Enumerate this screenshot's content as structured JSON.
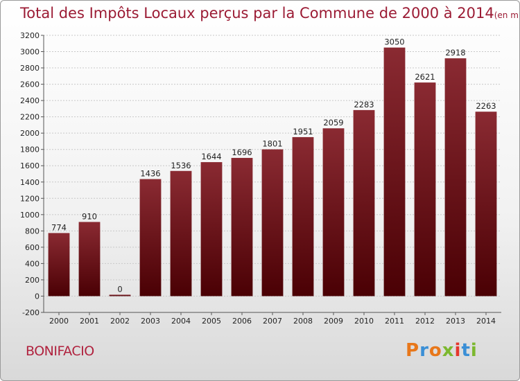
{
  "header": {
    "title": "Total des Impôts Locaux perçus par la Commune de 2000 à 2014",
    "unit": "(en milliers d'€)"
  },
  "footer": {
    "commune": "BONIFACIO",
    "brand": "Proxiti"
  },
  "colors": {
    "title": "#9b1b34",
    "bar_top": "#8a2a32",
    "bar_bottom": "#4a0004",
    "brand_letters": [
      "#e8771a",
      "#3a8fd6",
      "#e8771a",
      "#7cb82f",
      "#e5372e",
      "#3a8fd6",
      "#7cb82f"
    ]
  },
  "chart_data": {
    "type": "bar",
    "categories": [
      "2000",
      "2001",
      "2002",
      "2003",
      "2004",
      "2005",
      "2006",
      "2007",
      "2008",
      "2009",
      "2010",
      "2011",
      "2012",
      "2013",
      "2014"
    ],
    "values": [
      774,
      910,
      0,
      1436,
      1536,
      1644,
      1696,
      1801,
      1951,
      2059,
      2283,
      3050,
      2621,
      2918,
      2263
    ],
    "ylim": [
      -200,
      3200
    ],
    "yticks": [
      -200,
      0,
      200,
      400,
      600,
      800,
      1000,
      1200,
      1400,
      1600,
      1800,
      2000,
      2200,
      2400,
      2600,
      2800,
      3000,
      3200
    ],
    "title": "Total des Impôts Locaux perçus par la Commune de 2000 à 2014",
    "xlabel": "",
    "ylabel": "",
    "grid": true,
    "legend": "none"
  }
}
